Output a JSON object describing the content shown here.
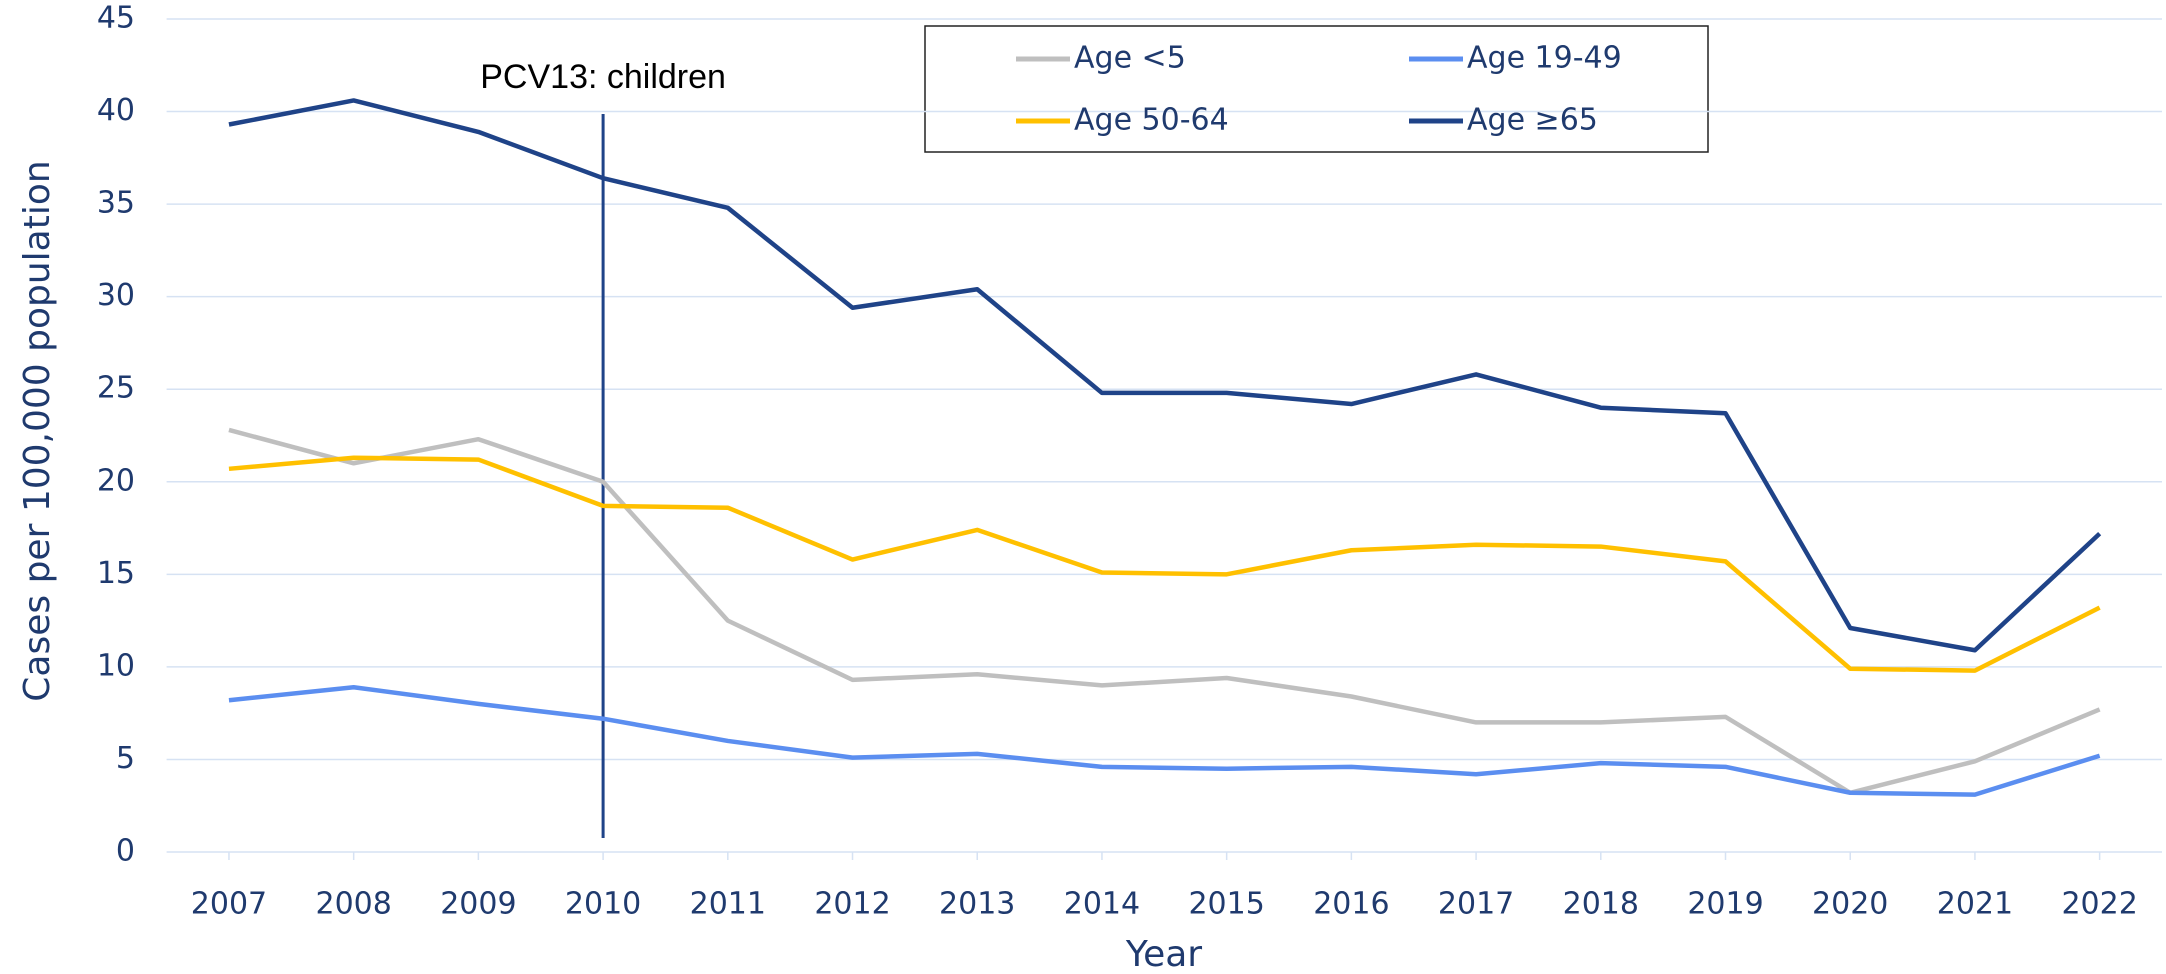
{
  "chart_data": {
    "type": "line",
    "y_label": "Cases per 100,000 population",
    "x_label": "Year",
    "annotation": {
      "text": "PCV13: children",
      "x": "2010"
    },
    "categories": [
      "2007",
      "2008",
      "2009",
      "2010",
      "2011",
      "2012",
      "2013",
      "2014",
      "2015",
      "2016",
      "2017",
      "2018",
      "2019",
      "2020",
      "2021",
      "2022"
    ],
    "series": [
      {
        "name": "Age <5",
        "color": "#bfbfbf",
        "values": [
          22.8,
          21.0,
          22.3,
          20.0,
          12.5,
          9.3,
          9.6,
          9.0,
          9.4,
          8.4,
          7.0,
          7.0,
          7.3,
          3.2,
          4.9,
          7.7
        ]
      },
      {
        "name": "Age 19-49",
        "color": "#5b8ef0",
        "values": [
          8.2,
          8.9,
          8.0,
          7.2,
          6.0,
          5.1,
          5.3,
          4.6,
          4.5,
          4.6,
          4.2,
          4.8,
          4.6,
          3.2,
          3.1,
          5.2
        ]
      },
      {
        "name": "Age 50-64",
        "color": "#ffc000",
        "values": [
          20.7,
          21.3,
          21.2,
          18.7,
          18.6,
          15.8,
          17.4,
          15.1,
          15.0,
          16.3,
          16.6,
          16.5,
          15.7,
          9.9,
          9.8,
          13.2
        ]
      },
      {
        "name": "Age ≥65",
        "color": "#1f4388",
        "values": [
          39.3,
          40.6,
          38.9,
          36.4,
          34.8,
          29.4,
          30.4,
          24.8,
          24.8,
          24.2,
          25.8,
          24.0,
          23.7,
          12.1,
          10.9,
          17.2
        ]
      }
    ],
    "ylim": [
      0,
      45
    ],
    "yticks": [
      0,
      5,
      10,
      15,
      20,
      25,
      30,
      35,
      40,
      45
    ],
    "grid": true,
    "legend": "top"
  }
}
